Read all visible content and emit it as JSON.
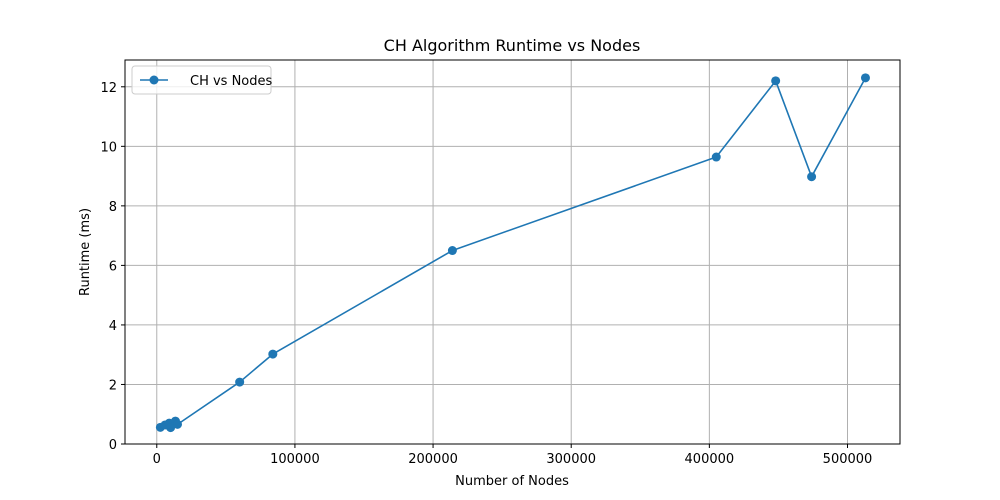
{
  "chart_data": {
    "type": "line",
    "title": "CH Algorithm Runtime vs Nodes",
    "xlabel": "Number of Nodes",
    "ylabel": "Runtime (ms)",
    "xlim": [
      -23000,
      538000
    ],
    "ylim": [
      0,
      12.9
    ],
    "xticks": [
      0,
      100000,
      200000,
      300000,
      400000,
      500000
    ],
    "xtick_labels": [
      "0",
      "100000",
      "200000",
      "300000",
      "400000",
      "500000"
    ],
    "yticks": [
      0,
      2,
      4,
      6,
      8,
      10,
      12
    ],
    "ytick_labels": [
      "0",
      "2",
      "4",
      "6",
      "8",
      "10",
      "12"
    ],
    "grid": true,
    "legend_position": "top-left",
    "series": [
      {
        "name": "CH vs Nodes",
        "color": "#1f77b4",
        "marker": "circle",
        "x": [
          2600,
          6000,
          9000,
          10000,
          13500,
          15000,
          60000,
          84000,
          214000,
          405000,
          448000,
          474000,
          513000
        ],
        "y": [
          0.56,
          0.64,
          0.7,
          0.55,
          0.77,
          0.66,
          2.08,
          3.02,
          6.5,
          9.64,
          12.2,
          8.98,
          12.3
        ]
      }
    ]
  }
}
